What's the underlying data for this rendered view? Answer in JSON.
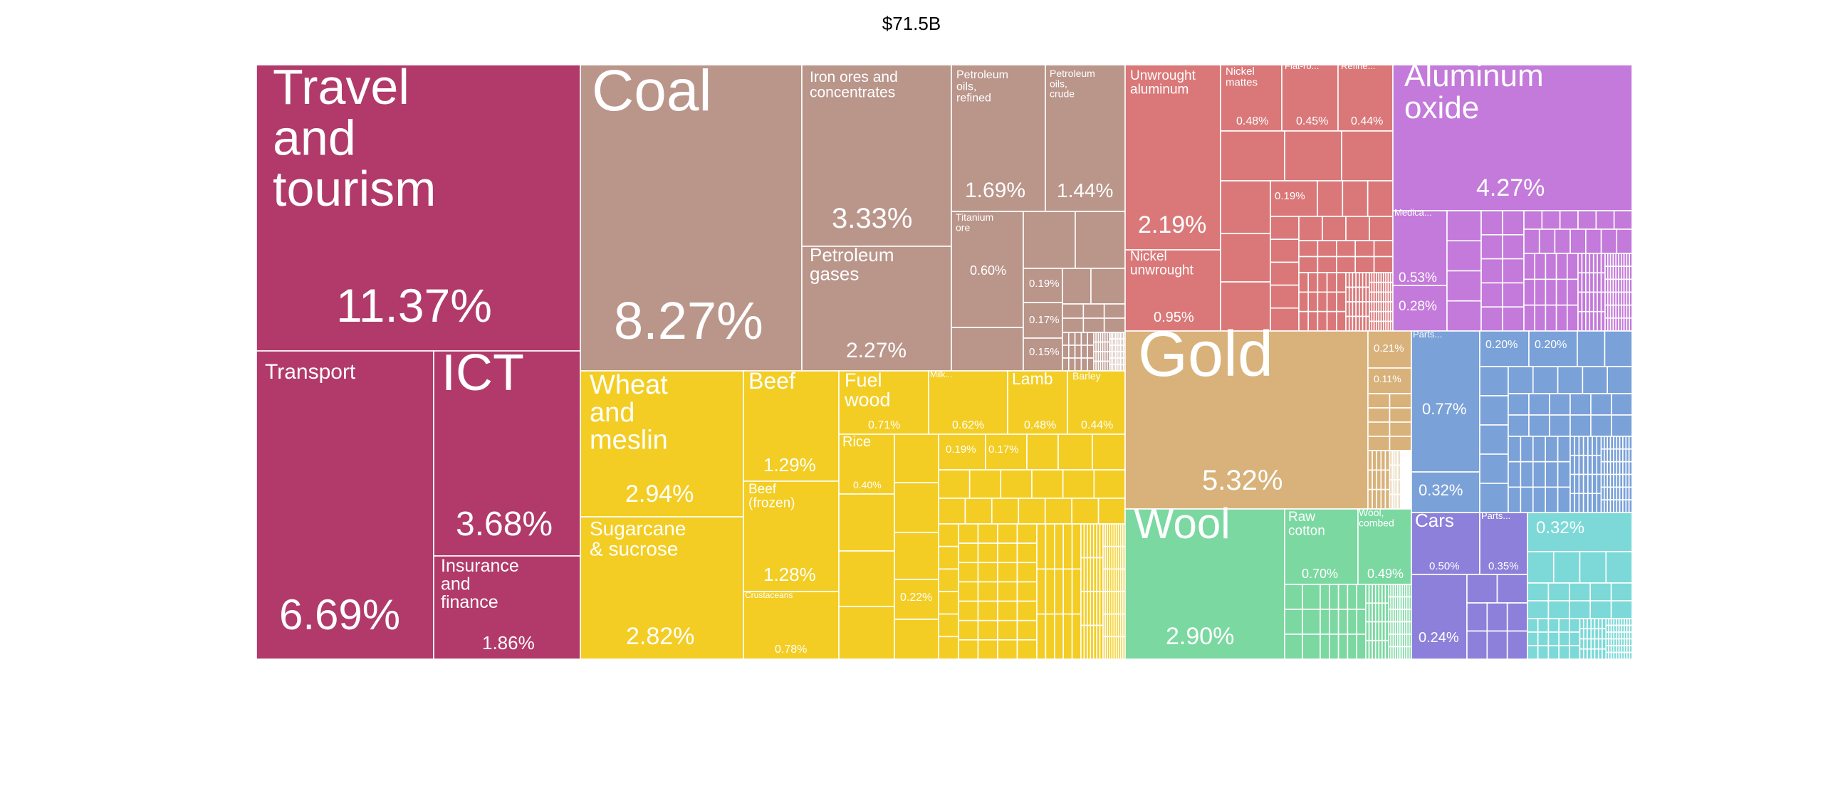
{
  "chart_data": {
    "type": "treemap",
    "title": "$71.5B",
    "colors": {
      "services": "#B13A6A",
      "minerals": "#BA958A",
      "vegetable": "#F3CD24",
      "metals": "#DA7879",
      "gold": "#D8B27A",
      "chemicals": "#C37ADA",
      "machinery": "#7AA1D8",
      "animal": "#7BD8A1",
      "transport": "#8C80DA",
      "other": "#7CD9D8"
    },
    "labeled": [
      {
        "name": "Travel and tourism",
        "value": "11.37%",
        "group": "services"
      },
      {
        "name": "Transport",
        "value": "6.69%",
        "group": "services"
      },
      {
        "name": "ICT",
        "value": "3.68%",
        "group": "services"
      },
      {
        "name": "Insurance and finance",
        "value": "1.86%",
        "group": "services"
      },
      {
        "name": "Coal",
        "value": "8.27%",
        "group": "minerals"
      },
      {
        "name": "Iron ores and concentrates",
        "value": "3.33%",
        "group": "minerals"
      },
      {
        "name": "Petroleum gases",
        "value": "2.27%",
        "group": "minerals"
      },
      {
        "name": "Petroleum oils, refined",
        "value": "1.69%",
        "group": "minerals"
      },
      {
        "name": "Petroleum oils, crude",
        "value": "1.44%",
        "group": "minerals"
      },
      {
        "name": "Titanium ore",
        "value": "0.60%",
        "group": "minerals"
      },
      {
        "name": "",
        "value": "0.19%",
        "group": "minerals"
      },
      {
        "name": "",
        "value": "0.17%",
        "group": "minerals"
      },
      {
        "name": "",
        "value": "0.15%",
        "group": "minerals"
      },
      {
        "name": "Wheat and meslin",
        "value": "2.94%",
        "group": "vegetable"
      },
      {
        "name": "Sugarcane & sucrose",
        "value": "2.82%",
        "group": "vegetable"
      },
      {
        "name": "Beef",
        "value": "1.29%",
        "group": "vegetable"
      },
      {
        "name": "Beef (frozen)",
        "value": "1.28%",
        "group": "vegetable"
      },
      {
        "name": "Crustaceans",
        "value": "0.78%",
        "group": "vegetable"
      },
      {
        "name": "Fuel wood",
        "value": "0.71%",
        "group": "vegetable"
      },
      {
        "name": "Milk...",
        "value": "0.62%",
        "group": "vegetable"
      },
      {
        "name": "Lamb",
        "value": "0.48%",
        "group": "vegetable"
      },
      {
        "name": "Barley",
        "value": "0.44%",
        "group": "vegetable"
      },
      {
        "name": "Rice",
        "value": "0.40%",
        "group": "vegetable"
      },
      {
        "name": "",
        "value": "0.22%",
        "group": "vegetable"
      },
      {
        "name": "",
        "value": "0.19%",
        "group": "vegetable"
      },
      {
        "name": "",
        "value": "0.17%",
        "group": "vegetable"
      },
      {
        "name": "Unwrought aluminum",
        "value": "2.19%",
        "group": "metals"
      },
      {
        "name": "Nickel unwrought",
        "value": "0.95%",
        "group": "metals"
      },
      {
        "name": "Nickel mattes",
        "value": "0.48%",
        "group": "metals"
      },
      {
        "name": "Flat-ro...",
        "value": "0.45%",
        "group": "metals"
      },
      {
        "name": "Refine...",
        "value": "0.44%",
        "group": "metals"
      },
      {
        "name": "",
        "value": "0.19%",
        "group": "metals"
      },
      {
        "name": "Aluminum oxide",
        "value": "4.27%",
        "group": "chemicals"
      },
      {
        "name": "Medica...",
        "value": "0.53%",
        "group": "chemicals"
      },
      {
        "name": "",
        "value": "0.28%",
        "group": "chemicals"
      },
      {
        "name": "Gold",
        "value": "5.32%",
        "group": "gold"
      },
      {
        "name": "",
        "value": "0.21%",
        "group": "gold"
      },
      {
        "name": "",
        "value": "0.11%",
        "group": "gold"
      },
      {
        "name": "Parts...",
        "value": "0.77%",
        "group": "machinery"
      },
      {
        "name": "",
        "value": "0.32%",
        "group": "machinery"
      },
      {
        "name": "",
        "value": "0.20%",
        "group": "machinery"
      },
      {
        "name": "",
        "value": "0.20%",
        "group": "machinery"
      },
      {
        "name": "Wool",
        "value": "2.90%",
        "group": "animal"
      },
      {
        "name": "Raw cotton",
        "value": "0.70%",
        "group": "animal"
      },
      {
        "name": "Wool, combed",
        "value": "0.49%",
        "group": "animal"
      },
      {
        "name": "Cars",
        "value": "0.50%",
        "group": "transport"
      },
      {
        "name": "Parts...",
        "value": "0.35%",
        "group": "transport"
      },
      {
        "name": "",
        "value": "0.24%",
        "group": "transport"
      },
      {
        "name": "",
        "value": "0.32%",
        "group": "other"
      }
    ]
  }
}
